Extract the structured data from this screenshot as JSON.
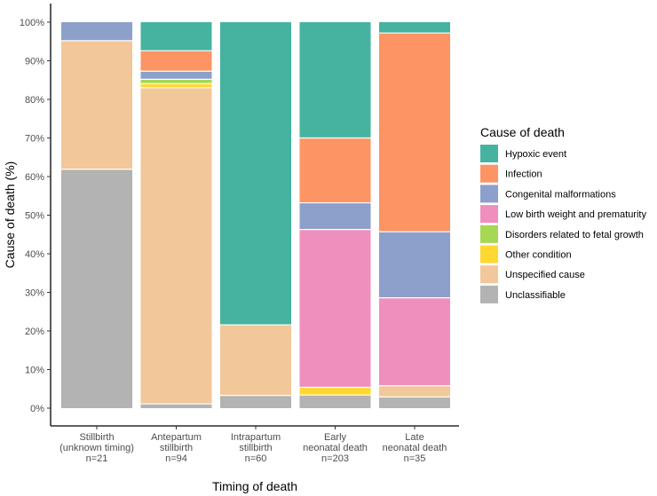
{
  "chart_data": {
    "type": "bar",
    "stacked": true,
    "title": "",
    "xlabel": "Timing of death",
    "ylabel": "Cause of death (%)",
    "ylim": [
      0,
      100
    ],
    "y_ticks": [
      "0%",
      "10%",
      "20%",
      "30%",
      "40%",
      "50%",
      "60%",
      "70%",
      "80%",
      "90%",
      "100%"
    ],
    "grid": false,
    "legend_position": "right",
    "legend_title": "Cause of death",
    "categories": [
      {
        "lines": [
          "Stillbirth",
          "(unknown timing)",
          "n=21"
        ]
      },
      {
        "lines": [
          "Antepartum",
          "stillbirth",
          "n=94"
        ]
      },
      {
        "lines": [
          "Intrapartum",
          "stillbirth",
          "n=60"
        ]
      },
      {
        "lines": [
          "Early",
          "neonatal death",
          "n=203"
        ]
      },
      {
        "lines": [
          "Late",
          "neonatal death",
          "n=35"
        ]
      }
    ],
    "series": [
      {
        "name": "Unclassifiable",
        "color": "#B3B3B3",
        "values": [
          61.9,
          1.1,
          3.3,
          3.4,
          2.9
        ]
      },
      {
        "name": "Unspecified cause",
        "color": "#F2C799",
        "values": [
          33.3,
          81.9,
          18.3,
          0.0,
          2.9
        ]
      },
      {
        "name": "Other condition",
        "color": "#FFD92F",
        "values": [
          0.0,
          1.1,
          0.0,
          2.0,
          0.0
        ]
      },
      {
        "name": "Disorders related to fetal growth",
        "color": "#A6D854",
        "values": [
          0.0,
          1.1,
          0.0,
          0.0,
          0.0
        ]
      },
      {
        "name": "Low birth weight and prematurity",
        "color": "#EF8FBE",
        "values": [
          0.0,
          0.0,
          0.0,
          40.9,
          22.8
        ]
      },
      {
        "name": "Congenital malformations",
        "color": "#8DA0CB",
        "values": [
          4.8,
          2.1,
          0.0,
          6.9,
          17.1
        ]
      },
      {
        "name": "Infection",
        "color": "#FC9463",
        "values": [
          0.0,
          5.3,
          0.0,
          16.8,
          51.5
        ]
      },
      {
        "name": "Hypoxic event",
        "color": "#45B39F",
        "values": [
          0.0,
          7.4,
          78.4,
          30.0,
          2.8
        ]
      }
    ],
    "legend_order": [
      "Hypoxic event",
      "Infection",
      "Congenital malformations",
      "Low birth weight and prematurity",
      "Disorders related to fetal growth",
      "Other condition",
      "Unspecified cause",
      "Unclassifiable"
    ]
  }
}
